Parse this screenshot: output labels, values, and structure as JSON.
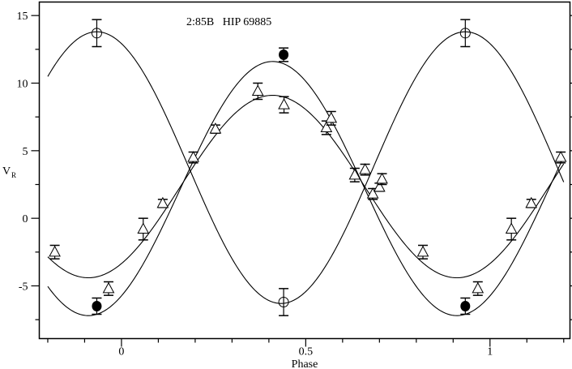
{
  "chart_data": {
    "type": "scatter",
    "title": "2:85B   HIP 69885",
    "xlabel": "Phase",
    "ylabel": "V",
    "ylabel_subscript": "R",
    "xlim": [
      -0.223,
      1.217
    ],
    "ylim": [
      -8.9,
      16.0
    ],
    "x_ticks": [
      {
        "value": 0,
        "label": "0"
      },
      {
        "value": 0.5,
        "label": "0.5"
      },
      {
        "value": 1,
        "label": "1"
      }
    ],
    "x_minor_step": 0.1,
    "y_ticks": [
      {
        "value": -5,
        "label": "-5"
      },
      {
        "value": 0,
        "label": "0"
      },
      {
        "value": 5,
        "label": "5"
      },
      {
        "value": 10,
        "label": "10"
      },
      {
        "value": 15,
        "label": "15"
      }
    ],
    "y_minor_step": 2.5,
    "grid": false,
    "colors": {
      "line": "#000000",
      "marker": "#000000",
      "background": "#ffffff"
    },
    "series": [
      {
        "marker": "open-circle",
        "points": [
          {
            "x": -0.067,
            "y": 13.7,
            "err": 1.0
          },
          {
            "x": 0.44,
            "y": -6.2,
            "err": 1.0
          },
          {
            "x": 0.933,
            "y": 13.7,
            "err": 1.0
          }
        ],
        "fit": {
          "gamma": 3.75,
          "K": 10.05,
          "phase_of_max": -0.067,
          "x_range": [
            -0.2,
            1.2
          ]
        }
      },
      {
        "marker": "filled-circle",
        "points": [
          {
            "x": -0.067,
            "y": -6.5,
            "err": 0.6
          },
          {
            "x": 0.44,
            "y": 12.1,
            "err": 0.5
          },
          {
            "x": 0.933,
            "y": -6.5,
            "err": 0.6
          }
        ],
        "fit": {
          "gamma": 2.2,
          "K": 9.4,
          "phase_of_max": 0.41,
          "x_range": [
            -0.2,
            1.2
          ]
        }
      },
      {
        "marker": "open-triangle",
        "points": [
          {
            "x": -0.181,
            "y": -2.5,
            "err": 0.5
          },
          {
            "x": -0.035,
            "y": -5.2,
            "err": 0.5
          },
          {
            "x": 0.059,
            "y": -0.8,
            "err": 0.8
          },
          {
            "x": 0.112,
            "y": 1.1,
            "err": 0.3
          },
          {
            "x": 0.195,
            "y": 4.5,
            "err": 0.4
          },
          {
            "x": 0.255,
            "y": 6.6,
            "err": 0.3
          },
          {
            "x": 0.37,
            "y": 9.4,
            "err": 0.6
          },
          {
            "x": 0.441,
            "y": 8.4,
            "err": 0.6
          },
          {
            "x": 0.556,
            "y": 6.7,
            "err": 0.5
          },
          {
            "x": 0.569,
            "y": 7.4,
            "err": 0.5
          },
          {
            "x": 0.633,
            "y": 3.2,
            "err": 0.5
          },
          {
            "x": 0.661,
            "y": 3.6,
            "err": 0.4
          },
          {
            "x": 0.682,
            "y": 1.8,
            "err": 0.4
          },
          {
            "x": 0.7,
            "y": 2.3,
            "err": 0.3
          },
          {
            "x": 0.707,
            "y": 2.9,
            "err": 0.4
          },
          {
            "x": 0.818,
            "y": -2.5,
            "err": 0.5
          },
          {
            "x": 0.967,
            "y": -5.2,
            "err": 0.5
          },
          {
            "x": 1.058,
            "y": -0.8,
            "err": 0.8
          },
          {
            "x": 1.112,
            "y": 1.1,
            "err": 0.3
          },
          {
            "x": 1.192,
            "y": 4.5,
            "err": 0.4
          }
        ],
        "fit": {
          "gamma": 2.35,
          "K": 6.75,
          "phase_of_max": 0.41,
          "x_range": [
            -0.2,
            1.2
          ]
        }
      }
    ]
  }
}
